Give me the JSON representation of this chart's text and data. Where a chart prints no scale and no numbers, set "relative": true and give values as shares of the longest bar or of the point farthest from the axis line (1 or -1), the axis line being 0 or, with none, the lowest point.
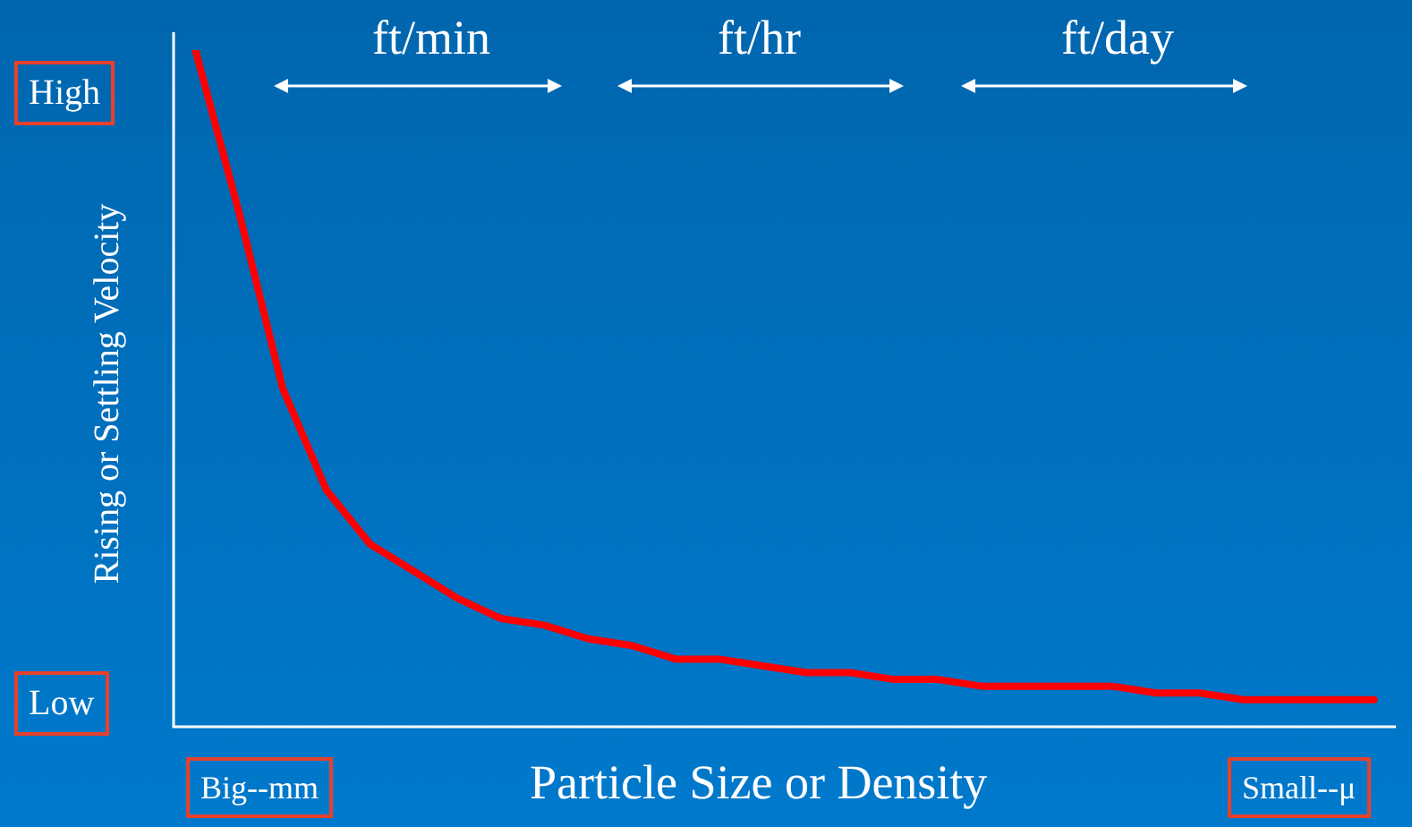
{
  "chart_data": {
    "type": "line",
    "relative": true,
    "xlabel": "Particle Size or Density",
    "ylabel": "Rising or Settling Velocity",
    "annotations": [
      "ft/min",
      "ft/hr",
      "ft/day",
      "High",
      "Low",
      "Big--mm",
      "Small--μ"
    ],
    "categories": [
      null,
      null,
      null,
      null,
      null,
      null,
      null,
      null,
      null,
      null,
      null,
      null,
      null,
      null,
      null,
      null,
      null,
      null,
      null,
      null,
      null,
      null,
      null,
      null,
      null,
      null,
      null,
      null
    ],
    "series": [
      {
        "color": "#ff0000",
        "values": [
          1.0,
          0.76,
          0.5,
          0.35,
          0.27,
          0.23,
          0.19,
          0.16,
          0.15,
          0.13,
          0.12,
          0.1,
          0.1,
          0.09,
          0.08,
          0.08,
          0.07,
          0.07,
          0.06,
          0.06,
          0.06,
          0.06,
          0.05,
          0.05,
          0.04,
          0.04,
          0.04,
          0.04
        ]
      }
    ],
    "legend": false,
    "marker": "none",
    "line_style": "solid"
  }
}
